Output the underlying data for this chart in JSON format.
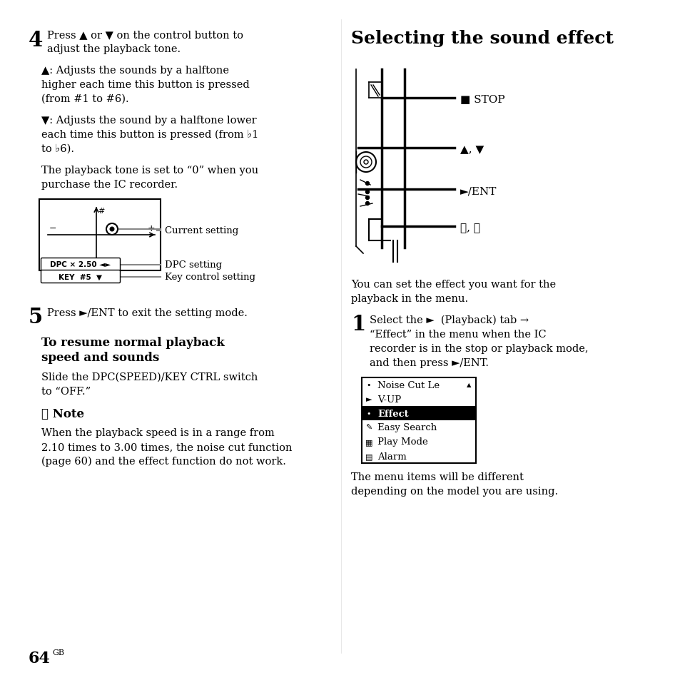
{
  "bg_color": "#ffffff",
  "sections": {
    "step4_number": "4",
    "step4_line1": "Press ▲ or ▼ on the control button to",
    "step4_line2": "adjust the playback tone.",
    "up_arrow_text": "▲: Adjusts the sounds by a halftone",
    "up_arrow_line2": "higher each time this button is pressed",
    "up_arrow_line3": "(from #1 to #6).",
    "down_arrow_text": "▼: Adjusts the sound by a halftone lower",
    "down_arrow_line2": "each time this button is pressed (from ♭1",
    "down_arrow_line3": "to ♭6).",
    "tone_text1": "The playback tone is set to “0” when you",
    "tone_text2": "purchase the IC recorder.",
    "diagram_labels": [
      "Current setting",
      "DPC setting",
      "Key control setting"
    ],
    "step5_number": "5",
    "step5_text": "Press ►/ENT to exit the setting mode.",
    "resume_title1": "To resume normal playback",
    "resume_title2": "speed and sounds",
    "resume_body1": "Slide the DPC(SPEED)/KEY CTRL switch",
    "resume_body2": "to “OFF.”",
    "note_title": "☒ Note",
    "note_body1": "When the playback speed is in a range from",
    "note_body2": "2.10 times to 3.00 times, the noise cut function",
    "note_body3": "(page 60) and the effect function do not work.",
    "page_number": "64",
    "page_suffix": "GB",
    "right_title": "Selecting the sound effect",
    "right_body1": "You can set the effect you want for the",
    "right_body2": "playback in the menu.",
    "step1_number": "1",
    "step1_line1": "Select the ►  (Playback) tab →",
    "step1_line2": "“Effect” in the menu when the IC",
    "step1_line3": "recorder is in the stop or playback mode,",
    "step1_line4": "and then press ►/ENT.",
    "menu_items": [
      "Noise Cut Le",
      "V-UP",
      "Effect",
      "Easy Search",
      "Play Mode",
      "Alarm"
    ],
    "menu_icons": [
      "•",
      "►",
      "•",
      "✎",
      "▦",
      "▤"
    ],
    "menu_highlight": 2,
    "right_note1": "The menu items will be different",
    "right_note2": "depending on the model you are using.",
    "stop_label": "■ STOP",
    "updown_label": "▲, ▼",
    "ent_label": "►/ENT",
    "skip_label": "⏮⏭"
  }
}
